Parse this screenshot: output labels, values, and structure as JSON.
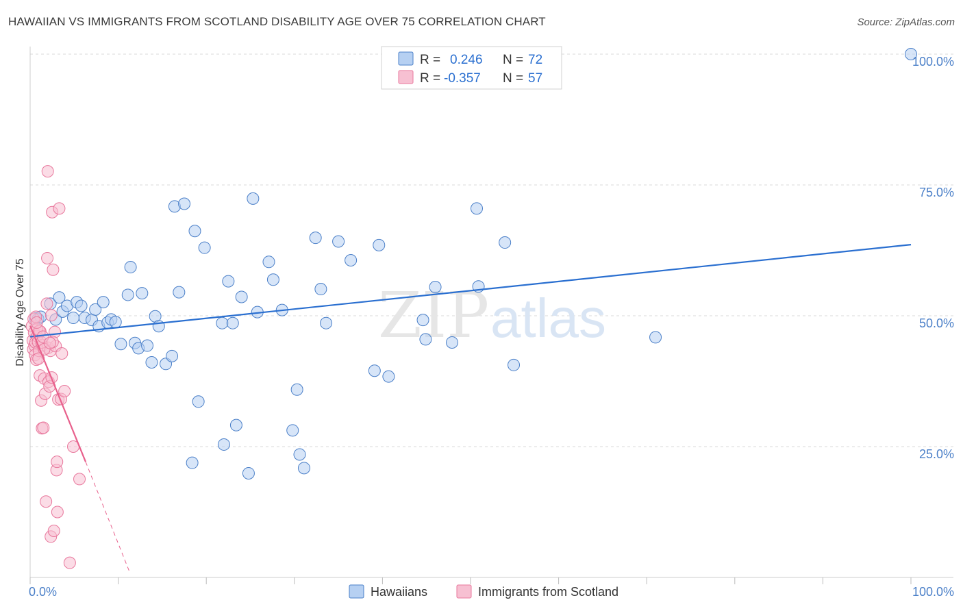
{
  "title": "HAWAIIAN VS IMMIGRANTS FROM SCOTLAND DISABILITY AGE OVER 75 CORRELATION CHART",
  "source": "Source: ZipAtlas.com",
  "watermark": {
    "zip": "ZIP",
    "atlas": "atlas"
  },
  "colors": {
    "blue": "#4a7fc8",
    "blue_fill": "#b6d0f2",
    "blue_line": "#2a6fd0",
    "pink": "#e8779c",
    "pink_fill": "#f7c0d2",
    "pink_line": "#e8608c",
    "grid": "#d8d8d8"
  },
  "legend_top": {
    "rows": [
      {
        "r_label": "R =",
        "r_value": "0.246",
        "n_label": "N =",
        "n_value": "72"
      },
      {
        "r_label": "R =",
        "r_value": "-0.357",
        "n_label": "N =",
        "n_value": "57"
      }
    ]
  },
  "chart_data": {
    "type": "scatter",
    "title": "HAWAIIAN VS IMMIGRANTS FROM SCOTLAND DISABILITY AGE OVER 75 CORRELATION CHART",
    "xlabel": "",
    "ylabel": "Disability Age Over 75",
    "xlim": [
      0,
      100
    ],
    "ylim": [
      0,
      100
    ],
    "x_tick_labels": [
      "0.0%",
      "100.0%"
    ],
    "y_ticks": [
      25,
      50,
      75,
      100
    ],
    "y_tick_labels": [
      "25.0%",
      "50.0%",
      "75.0%",
      "100.0%"
    ],
    "legend": [
      "Hawaiians",
      "Immigrants from Scotland"
    ],
    "series": [
      {
        "name": "Hawaiians",
        "color": "#4a7fc8",
        "trend": {
          "x0": 0,
          "y0": 46.0,
          "x1": 100,
          "y1": 63.6
        },
        "points": [
          [
            0.6,
            49.5
          ],
          [
            0.9,
            49.4
          ],
          [
            1.2,
            49.8
          ],
          [
            2.3,
            52.3
          ],
          [
            2.9,
            49.3
          ],
          [
            3.3,
            53.5
          ],
          [
            3.7,
            50.8
          ],
          [
            4.2,
            51.9
          ],
          [
            4.9,
            49.6
          ],
          [
            5.3,
            52.6
          ],
          [
            5.8,
            51.9
          ],
          [
            6.2,
            49.6
          ],
          [
            7.0,
            49.2
          ],
          [
            7.4,
            51.2
          ],
          [
            7.8,
            48.0
          ],
          [
            8.3,
            52.6
          ],
          [
            8.8,
            48.7
          ],
          [
            9.2,
            49.3
          ],
          [
            9.7,
            48.8
          ],
          [
            10.3,
            44.6
          ],
          [
            11.1,
            54.0
          ],
          [
            11.4,
            59.3
          ],
          [
            11.9,
            44.8
          ],
          [
            12.3,
            43.8
          ],
          [
            12.7,
            54.3
          ],
          [
            13.3,
            44.3
          ],
          [
            13.8,
            41.1
          ],
          [
            14.2,
            49.9
          ],
          [
            14.6,
            48.0
          ],
          [
            15.4,
            40.8
          ],
          [
            16.1,
            42.3
          ],
          [
            16.4,
            70.9
          ],
          [
            16.9,
            54.5
          ],
          [
            17.5,
            71.4
          ],
          [
            18.7,
            66.2
          ],
          [
            19.1,
            33.6
          ],
          [
            19.8,
            63.0
          ],
          [
            22.0,
            25.4
          ],
          [
            21.8,
            48.6
          ],
          [
            22.5,
            56.6
          ],
          [
            23.0,
            48.6
          ],
          [
            23.4,
            29.1
          ],
          [
            24.0,
            53.6
          ],
          [
            24.8,
            19.9
          ],
          [
            25.3,
            72.4
          ],
          [
            25.8,
            50.7
          ],
          [
            27.1,
            60.3
          ],
          [
            27.6,
            56.9
          ],
          [
            28.6,
            51.1
          ],
          [
            29.8,
            28.1
          ],
          [
            30.3,
            35.9
          ],
          [
            30.6,
            23.5
          ],
          [
            31.1,
            20.9
          ],
          [
            32.4,
            64.9
          ],
          [
            33.0,
            55.1
          ],
          [
            33.6,
            48.6
          ],
          [
            35.0,
            64.2
          ],
          [
            36.4,
            60.6
          ],
          [
            39.1,
            39.5
          ],
          [
            39.6,
            63.5
          ],
          [
            40.7,
            38.4
          ],
          [
            44.6,
            49.2
          ],
          [
            44.9,
            45.5
          ],
          [
            46.0,
            55.5
          ],
          [
            47.9,
            44.9
          ],
          [
            50.7,
            70.5
          ],
          [
            50.9,
            55.6
          ],
          [
            53.9,
            64.0
          ],
          [
            54.9,
            40.6
          ],
          [
            71.0,
            45.9
          ],
          [
            100.0,
            100.0
          ],
          [
            18.4,
            21.9
          ]
        ]
      },
      {
        "name": "Immigrants from Scotland",
        "color": "#e8779c",
        "trend": {
          "x0": 0,
          "y0": 48.1,
          "x1": 6.3,
          "y1": 22.1
        },
        "trend_dashed": {
          "x0": 6.3,
          "y0": 22.1,
          "x1": 11.3,
          "y1": 1.0
        },
        "points": [
          [
            0.2,
            48.0
          ],
          [
            0.3,
            45.3
          ],
          [
            0.35,
            43.6
          ],
          [
            0.4,
            49.4
          ],
          [
            0.45,
            46.8
          ],
          [
            0.5,
            44.3
          ],
          [
            0.55,
            42.5
          ],
          [
            0.6,
            44.9
          ],
          [
            0.7,
            41.6
          ],
          [
            0.8,
            46.1
          ],
          [
            0.9,
            45.0
          ],
          [
            1.0,
            43.3
          ],
          [
            1.1,
            38.6
          ],
          [
            1.15,
            47.0
          ],
          [
            1.25,
            33.8
          ],
          [
            1.35,
            28.5
          ],
          [
            1.4,
            44.4
          ],
          [
            1.5,
            28.6
          ],
          [
            1.6,
            38.0
          ],
          [
            1.7,
            35.1
          ],
          [
            1.8,
            14.5
          ],
          [
            1.9,
            52.3
          ],
          [
            1.95,
            61.0
          ],
          [
            2.0,
            77.6
          ],
          [
            2.05,
            43.9
          ],
          [
            2.1,
            37.4
          ],
          [
            2.2,
            36.5
          ],
          [
            2.3,
            43.3
          ],
          [
            2.35,
            7.8
          ],
          [
            2.4,
            50.1
          ],
          [
            2.45,
            38.2
          ],
          [
            2.5,
            69.8
          ],
          [
            2.6,
            58.8
          ],
          [
            2.7,
            8.9
          ],
          [
            2.8,
            46.9
          ],
          [
            2.9,
            44.2
          ],
          [
            3.0,
            20.5
          ],
          [
            3.05,
            22.1
          ],
          [
            3.1,
            12.5
          ],
          [
            3.2,
            34.0
          ],
          [
            3.3,
            70.5
          ],
          [
            3.5,
            34.1
          ],
          [
            3.6,
            42.8
          ],
          [
            3.9,
            35.6
          ],
          [
            4.5,
            2.8
          ],
          [
            4.9,
            25.0
          ],
          [
            5.6,
            18.8
          ],
          [
            0.8,
            47.5
          ],
          [
            1.3,
            44.9
          ],
          [
            1.6,
            43.6
          ],
          [
            0.65,
            49.8
          ],
          [
            2.55,
            45.0
          ],
          [
            1.05,
            47.1
          ],
          [
            0.95,
            41.8
          ],
          [
            1.45,
            46.0
          ],
          [
            2.25,
            44.8
          ],
          [
            0.75,
            48.7
          ]
        ]
      }
    ]
  }
}
